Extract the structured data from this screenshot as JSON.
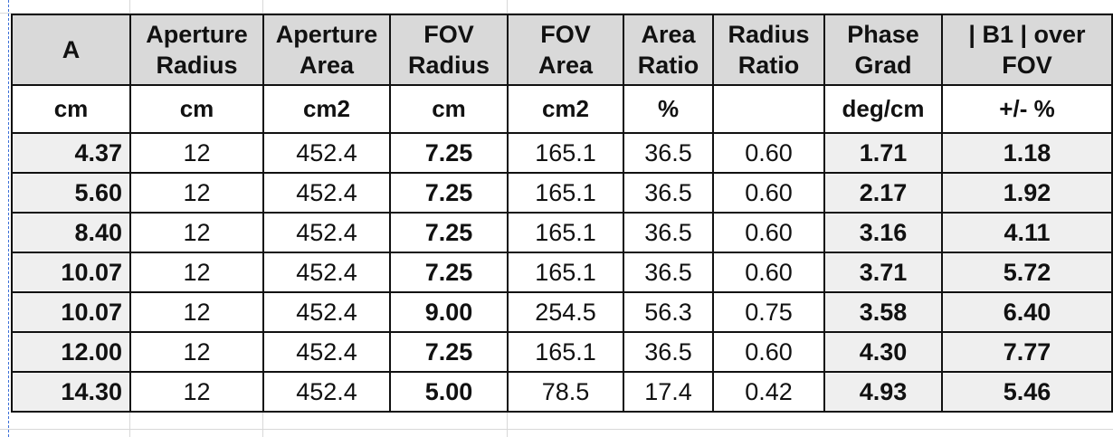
{
  "table": {
    "headers": [
      [
        "A"
      ],
      [
        "Aperture",
        "Radius"
      ],
      [
        "Aperture",
        "Area"
      ],
      [
        "FOV",
        "Radius"
      ],
      [
        "FOV",
        "Area"
      ],
      [
        "Area",
        "Ratio"
      ],
      [
        "Radius",
        "Ratio"
      ],
      [
        "Phase",
        "Grad"
      ],
      [
        "| B1 | over",
        "FOV"
      ]
    ],
    "units": [
      "cm",
      "cm",
      "cm2",
      "cm",
      "cm2",
      "%",
      null,
      "deg/cm",
      "+/- %"
    ],
    "rows": [
      [
        "4.37",
        "12",
        "452.4",
        "7.25",
        "165.1",
        "36.5",
        "0.60",
        "1.71",
        "1.18"
      ],
      [
        "5.60",
        "12",
        "452.4",
        "7.25",
        "165.1",
        "36.5",
        "0.60",
        "2.17",
        "1.92"
      ],
      [
        "8.40",
        "12",
        "452.4",
        "7.25",
        "165.1",
        "36.5",
        "0.60",
        "3.16",
        "4.11"
      ],
      [
        "10.07",
        "12",
        "452.4",
        "7.25",
        "165.1",
        "36.5",
        "0.60",
        "3.71",
        "5.72"
      ],
      [
        "10.07",
        "12",
        "452.4",
        "9.00",
        "254.5",
        "56.3",
        "0.75",
        "3.58",
        "6.40"
      ],
      [
        "12.00",
        "12",
        "452.4",
        "7.25",
        "165.1",
        "36.5",
        "0.60",
        "4.30",
        "7.77"
      ],
      [
        "14.30",
        "12",
        "452.4",
        "5.00",
        "78.5",
        "17.4",
        "0.42",
        "4.93",
        "5.46"
      ]
    ]
  }
}
